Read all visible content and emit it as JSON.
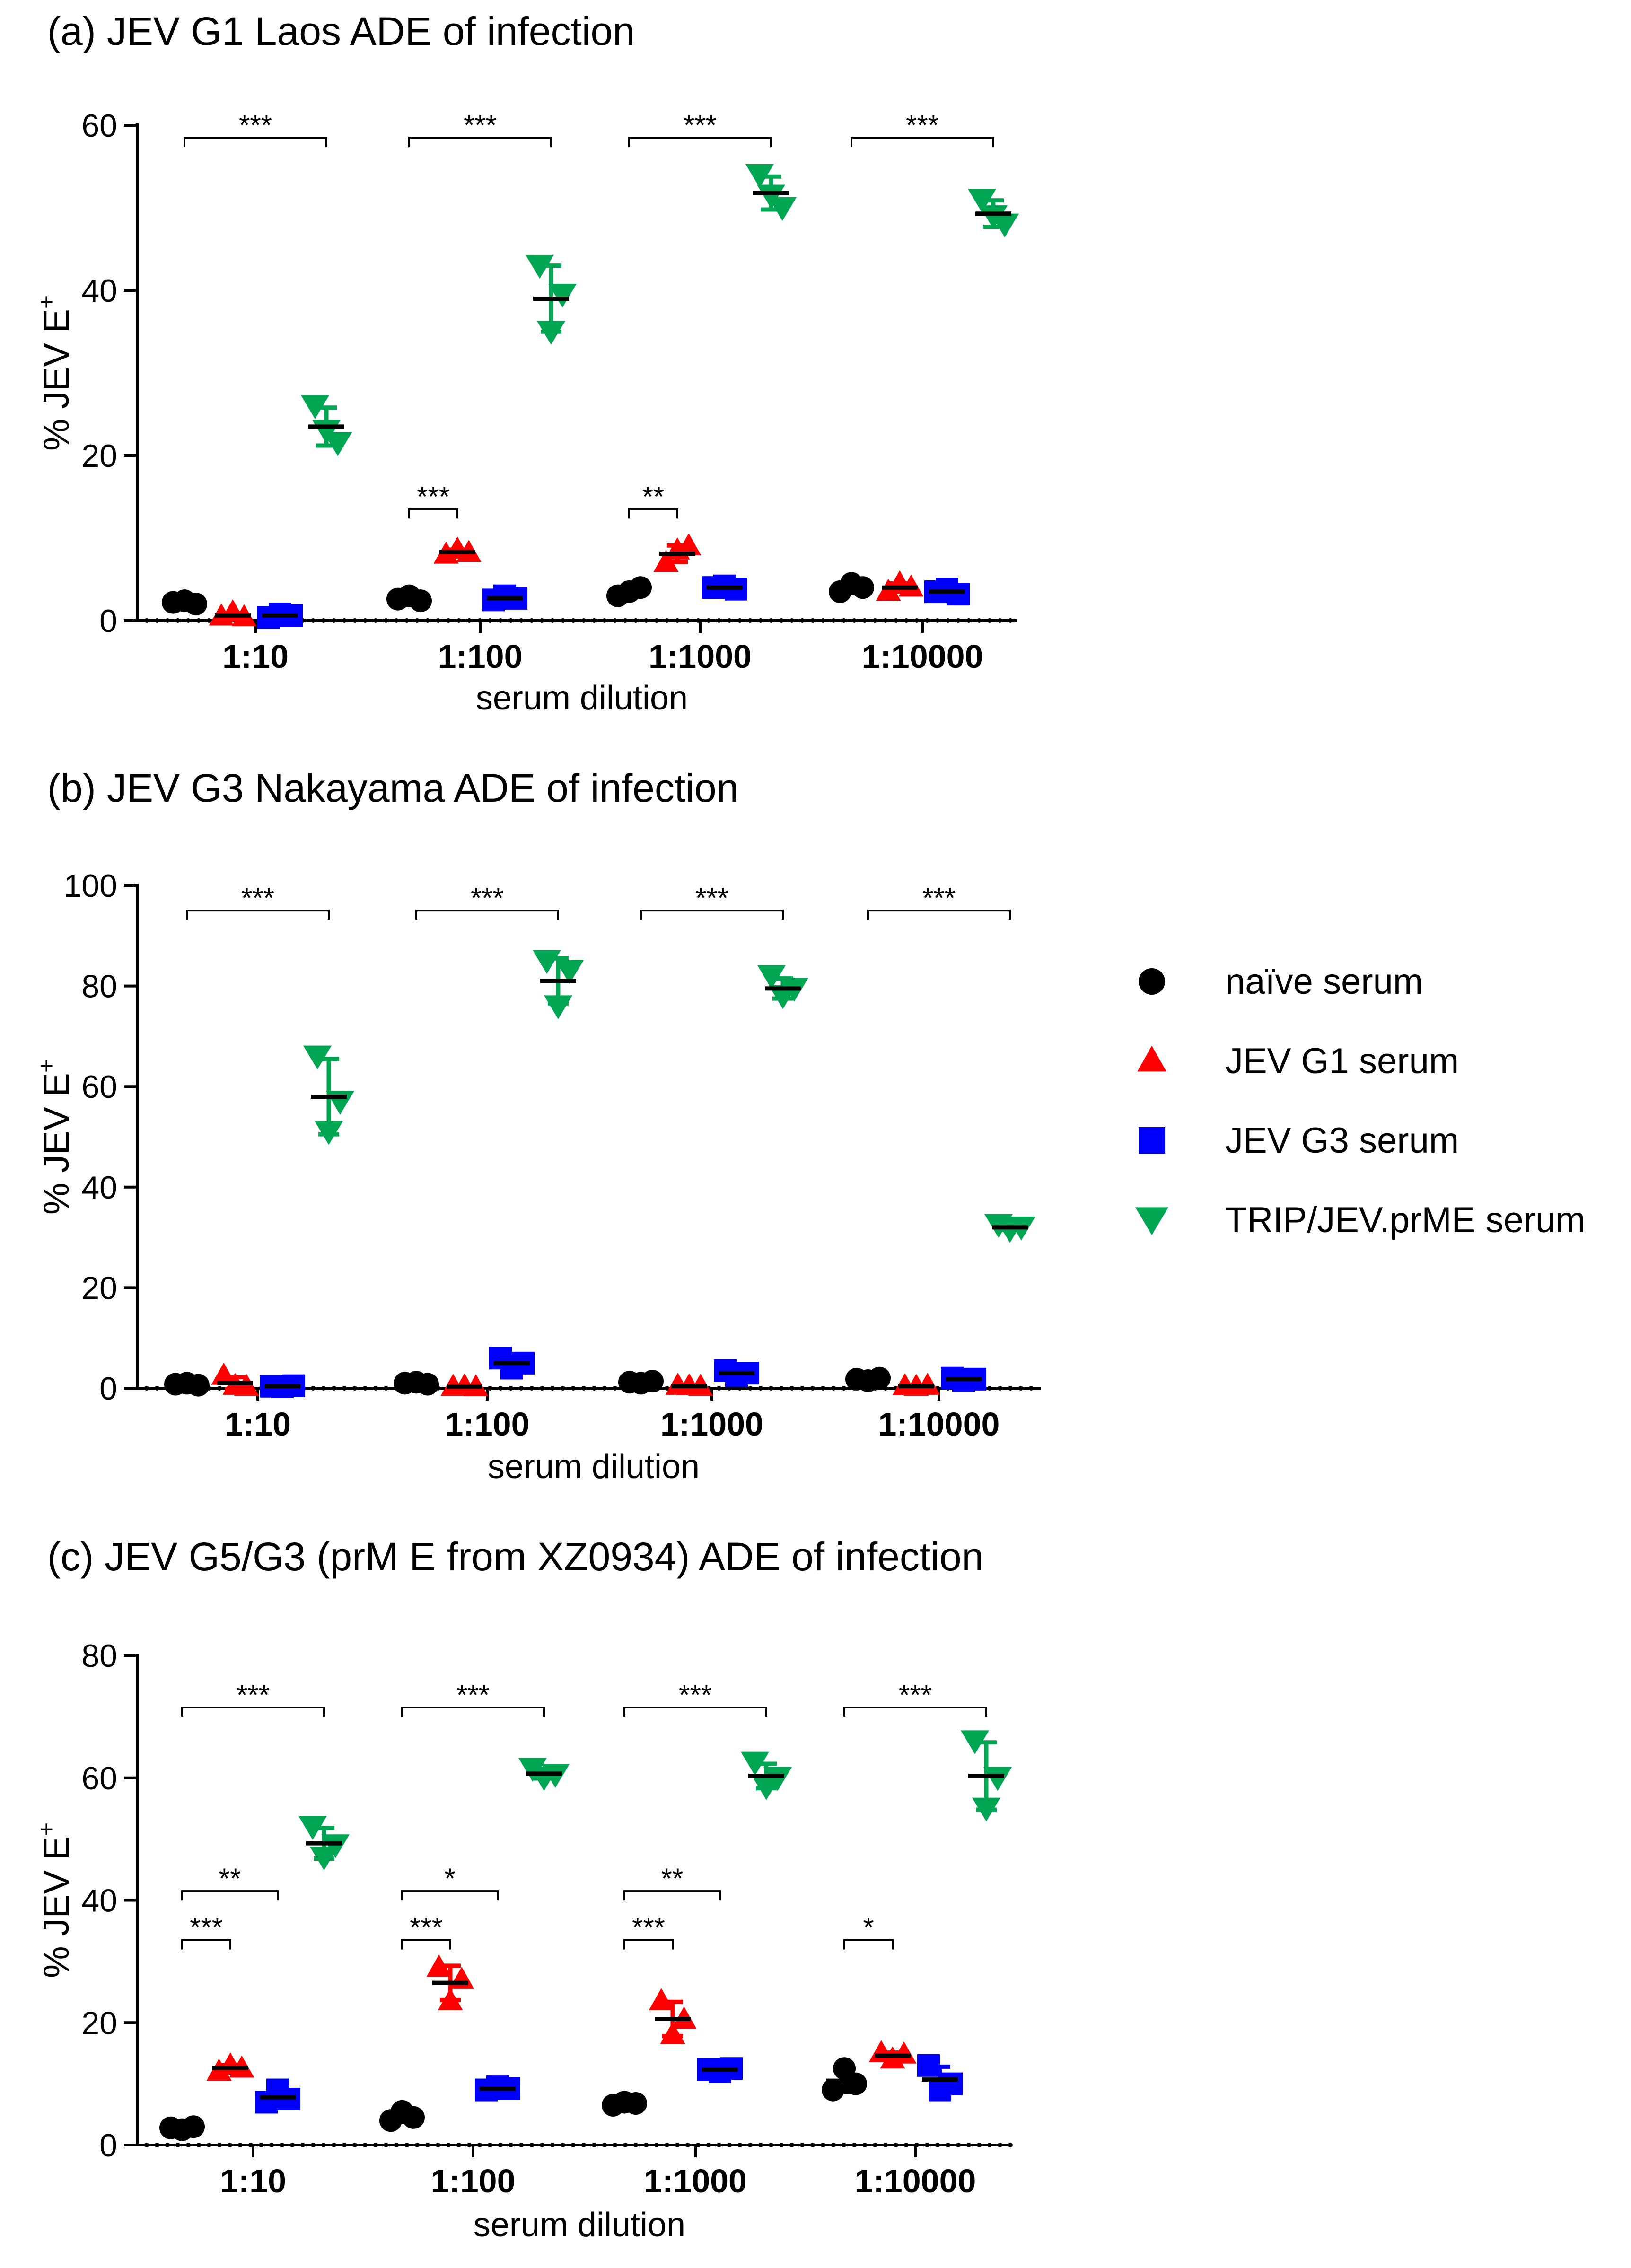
{
  "colors": {
    "naive": "#000000",
    "g1": "#ff0000",
    "g3": "#0000ff",
    "trip": "#00a651",
    "axis": "#000000"
  },
  "legend": [
    {
      "key": "naive",
      "label": "naïve serum",
      "marker": "circle"
    },
    {
      "key": "g1",
      "label": "JEV G1 serum",
      "marker": "triangle-up"
    },
    {
      "key": "g3",
      "label": "JEV G3 serum",
      "marker": "square"
    },
    {
      "key": "trip",
      "label": "TRIP/JEV.prME serum",
      "marker": "triangle-down"
    }
  ],
  "chart_data": [
    {
      "type": "scatter",
      "title": "(a) JEV G1 Laos ADE of infection",
      "xlabel": "serum dilution",
      "ylabel": "% JEV E",
      "ylabel_superscript": "+",
      "ylim": [
        0,
        60
      ],
      "yticks": [
        0,
        20,
        40,
        60
      ],
      "categories": [
        "1:10",
        "1:100",
        "1:1000",
        "1:10000"
      ],
      "series": [
        {
          "key": "naive",
          "name": "naïve serum",
          "points": [
            [
              2.2,
              2.4,
              2.0
            ],
            [
              2.6,
              3.0,
              2.4
            ],
            [
              3.0,
              3.5,
              4.0
            ],
            [
              3.5,
              4.5,
              4.0
            ]
          ],
          "mean": [
            2.2,
            2.7,
            3.5,
            4.0
          ],
          "sd": [
            0.2,
            0.3,
            0.5,
            0.5
          ]
        },
        {
          "key": "g1",
          "name": "JEV G1 serum",
          "points": [
            [
              0.5,
              1.0,
              0.4
            ],
            [
              8.0,
              8.6,
              8.2
            ],
            [
              7.0,
              8.5,
              9.0
            ],
            [
              3.5,
              4.5,
              4.0
            ]
          ],
          "mean": [
            0.6,
            8.3,
            8.1,
            4.0
          ],
          "sd": [
            0.3,
            0.3,
            1.0,
            0.5
          ]
        },
        {
          "key": "g3",
          "name": "JEV G3 serum",
          "points": [
            [
              0.4,
              0.8,
              0.6
            ],
            [
              2.5,
              3.0,
              2.7
            ],
            [
              4.0,
              4.2,
              3.8
            ],
            [
              3.5,
              3.8,
              3.2
            ]
          ],
          "mean": [
            0.6,
            2.7,
            4.0,
            3.5
          ],
          "sd": [
            0.2,
            0.3,
            0.2,
            0.3
          ]
        },
        {
          "key": "trip",
          "name": "TRIP/JEV.prME serum",
          "points": [
            [
              26.0,
              23.0,
              21.5
            ],
            [
              43.0,
              35.0,
              39.5
            ],
            [
              54.0,
              51.5,
              50.0
            ],
            [
              51.0,
              49.0,
              48.0
            ]
          ],
          "mean": [
            23.5,
            39.0,
            51.8,
            49.3
          ],
          "sd": [
            2.3,
            4.0,
            2.0,
            1.6
          ]
        }
      ],
      "significance": [
        {
          "label": "***",
          "cat": 0,
          "from": "naive",
          "to": "trip",
          "y": 58.5
        },
        {
          "label": "***",
          "cat": 1,
          "from": "naive",
          "to": "trip",
          "y": 58.5
        },
        {
          "label": "***",
          "cat": 2,
          "from": "naive",
          "to": "trip",
          "y": 58.5
        },
        {
          "label": "***",
          "cat": 3,
          "from": "naive",
          "to": "trip",
          "y": 58.5
        },
        {
          "label": "***",
          "cat": 1,
          "from": "naive",
          "to": "g1",
          "y": 13.5
        },
        {
          "label": "**",
          "cat": 2,
          "from": "naive",
          "to": "g1",
          "y": 13.5
        }
      ]
    },
    {
      "type": "scatter",
      "title": "(b) JEV G3 Nakayama ADE of infection",
      "xlabel": "serum dilution",
      "ylabel": "% JEV E",
      "ylabel_superscript": "+",
      "ylim": [
        0,
        100
      ],
      "yticks": [
        0,
        20,
        40,
        60,
        80,
        100
      ],
      "categories": [
        "1:10",
        "1:100",
        "1:1000",
        "1:10000"
      ],
      "series": [
        {
          "key": "naive",
          "name": "naïve serum",
          "points": [
            [
              0.8,
              1.0,
              0.6
            ],
            [
              1.0,
              1.2,
              0.8
            ],
            [
              1.2,
              1.0,
              1.4
            ],
            [
              1.8,
              1.5,
              2.0
            ]
          ],
          "mean": [
            0.8,
            1.0,
            1.2,
            1.8
          ],
          "sd": [
            0.2,
            0.2,
            0.2,
            0.3
          ]
        },
        {
          "key": "g1",
          "name": "JEV G1 serum",
          "points": [
            [
              2.5,
              0.5,
              0.3
            ],
            [
              0.3,
              0.4,
              0.2
            ],
            [
              0.5,
              0.4,
              0.3
            ],
            [
              0.4,
              0.3,
              0.5
            ]
          ],
          "mean": [
            1.0,
            0.3,
            0.4,
            0.4
          ],
          "sd": [
            1.2,
            0.1,
            0.1,
            0.1
          ]
        },
        {
          "key": "g3",
          "name": "JEV G3 serum",
          "points": [
            [
              0.4,
              0.3,
              0.5
            ],
            [
              6.0,
              4.0,
              5.0
            ],
            [
              3.5,
              2.5,
              3.0
            ],
            [
              2.0,
              1.5,
              1.8
            ]
          ],
          "mean": [
            0.4,
            5.0,
            3.0,
            1.8
          ],
          "sd": [
            0.1,
            1.0,
            0.5,
            0.3
          ]
        },
        {
          "key": "trip",
          "name": "TRIP/JEV.prME serum",
          "points": [
            [
              66.0,
              51.0,
              57.0
            ],
            [
              85.0,
              76.0,
              83.0
            ],
            [
              82.0,
              78.0,
              79.5
            ],
            [
              32.5,
              31.5,
              32.0
            ]
          ],
          "mean": [
            58.0,
            81.0,
            79.5,
            32.0
          ],
          "sd": [
            7.5,
            4.5,
            2.0,
            0.5
          ]
        }
      ],
      "significance": [
        {
          "label": "***",
          "cat": 0,
          "from": "naive",
          "to": "trip",
          "y": 95
        },
        {
          "label": "***",
          "cat": 1,
          "from": "naive",
          "to": "trip",
          "y": 95
        },
        {
          "label": "***",
          "cat": 2,
          "from": "naive",
          "to": "trip",
          "y": 95
        },
        {
          "label": "***",
          "cat": 3,
          "from": "naive",
          "to": "trip",
          "y": 95
        }
      ]
    },
    {
      "type": "scatter",
      "title": "(c) JEV G5/G3 (prM E from XZ0934) ADE of infection",
      "xlabel": "serum dilution",
      "ylabel": "% JEV E",
      "ylabel_superscript": "+",
      "ylim": [
        0,
        80
      ],
      "yticks": [
        0,
        20,
        40,
        60,
        80
      ],
      "categories": [
        "1:10",
        "1:100",
        "1:1000",
        "1:10000"
      ],
      "series": [
        {
          "key": "naive",
          "name": "naïve serum",
          "points": [
            [
              2.8,
              2.5,
              3.0
            ],
            [
              4.0,
              5.5,
              4.5
            ],
            [
              6.5,
              7.0,
              6.8
            ],
            [
              9.0,
              12.5,
              10.0
            ]
          ],
          "mean": [
            2.7,
            4.6,
            6.8,
            10.5
          ],
          "sd": [
            0.3,
            0.8,
            0.3,
            1.8
          ]
        },
        {
          "key": "g1",
          "name": "JEV G1 serum",
          "points": [
            [
              12.0,
              13.0,
              12.5
            ],
            [
              29.0,
              23.5,
              27.0
            ],
            [
              23.5,
              18.0,
              20.5
            ],
            [
              15.0,
              14.0,
              14.8
            ]
          ],
          "mean": [
            12.6,
            26.5,
            20.6,
            14.6
          ],
          "sd": [
            0.5,
            2.8,
            2.8,
            0.5
          ]
        },
        {
          "key": "g3",
          "name": "JEV G3 serum",
          "points": [
            [
              7.0,
              9.0,
              7.5
            ],
            [
              9.0,
              9.5,
              9.2
            ],
            [
              12.3,
              12.0,
              12.5
            ],
            [
              13.0,
              9.0,
              10.0
            ]
          ],
          "mean": [
            7.8,
            9.2,
            12.3,
            10.7
          ],
          "sd": [
            1.0,
            0.3,
            0.3,
            2.1
          ]
        },
        {
          "key": "trip",
          "name": "TRIP/JEV.prME serum",
          "points": [
            [
              52.0,
              47.0,
              49.0
            ],
            [
              61.5,
              60.0,
              60.5
            ],
            [
              62.5,
              58.5,
              60.0
            ],
            [
              66.0,
              55.0,
              60.0
            ]
          ],
          "mean": [
            49.3,
            60.7,
            60.3,
            60.3
          ],
          "sd": [
            2.5,
            0.8,
            2.0,
            5.5
          ]
        }
      ],
      "significance": [
        {
          "label": "***",
          "cat": 0,
          "from": "naive",
          "to": "trip",
          "y": 71.5
        },
        {
          "label": "***",
          "cat": 1,
          "from": "naive",
          "to": "trip",
          "y": 71.5
        },
        {
          "label": "***",
          "cat": 2,
          "from": "naive",
          "to": "trip",
          "y": 71.5
        },
        {
          "label": "***",
          "cat": 3,
          "from": "naive",
          "to": "trip",
          "y": 71.5
        },
        {
          "label": "**",
          "cat": 0,
          "from": "naive",
          "to": "g3",
          "y": 41.5
        },
        {
          "label": "*",
          "cat": 1,
          "from": "naive",
          "to": "g3",
          "y": 41.5
        },
        {
          "label": "**",
          "cat": 2,
          "from": "naive",
          "to": "g3",
          "y": 41.5
        },
        {
          "label": "***",
          "cat": 0,
          "from": "naive",
          "to": "g1",
          "y": 33.5
        },
        {
          "label": "***",
          "cat": 1,
          "from": "naive",
          "to": "g1",
          "y": 33.5
        },
        {
          "label": "***",
          "cat": 2,
          "from": "naive",
          "to": "g1",
          "y": 33.5
        },
        {
          "label": "*",
          "cat": 3,
          "from": "naive",
          "to": "g1",
          "y": 33.5
        }
      ]
    }
  ]
}
